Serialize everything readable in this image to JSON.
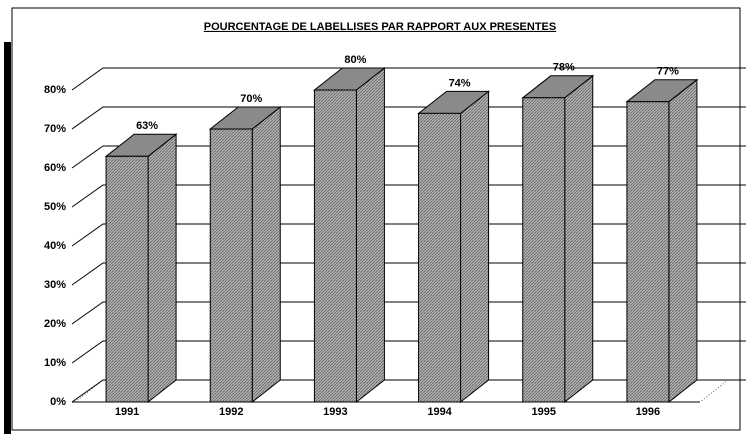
{
  "chart_data": {
    "type": "bar3d",
    "title": "POURCENTAGE DE LABELLISES PAR RAPPORT AUX PRESENTES",
    "categories": [
      "1991",
      "1992",
      "1993",
      "1994",
      "1995",
      "1996"
    ],
    "values": [
      63,
      70,
      80,
      74,
      78,
      77
    ],
    "value_labels": [
      "63%",
      "70%",
      "80%",
      "74%",
      "78%",
      "77%"
    ],
    "color": "#a0a0a0",
    "ylim": [
      0,
      80
    ],
    "yticks": [
      {
        "value": 0,
        "label": "0%"
      },
      {
        "value": 10,
        "label": "10%"
      },
      {
        "value": 20,
        "label": "20%"
      },
      {
        "value": 30,
        "label": "30%"
      },
      {
        "value": 40,
        "label": "40%"
      },
      {
        "value": 50,
        "label": "50%"
      },
      {
        "value": 60,
        "label": "60%"
      },
      {
        "value": 70,
        "label": "70%"
      },
      {
        "value": 80,
        "label": "80%"
      }
    ],
    "grid": true
  }
}
